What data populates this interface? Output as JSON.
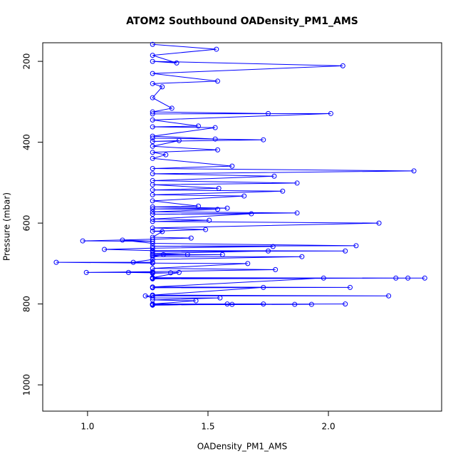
{
  "chart_data": {
    "type": "line",
    "title": "ATOM2 Southbound OADensity_PM1_AMS",
    "x_label": "OADensity_PM1_AMS",
    "y_label": "Pressure (mbar)",
    "color": "#0000ff",
    "xlim": [
      0.814,
      2.47
    ],
    "ylim": [
      1065,
      154
    ],
    "xticks": [
      {
        "value": 1,
        "label": "1.0"
      },
      1.5,
      {
        "value": 2,
        "label": "2.0"
      }
    ],
    "yticks": [
      200,
      400,
      600,
      800,
      1000
    ],
    "x": [
      1.27,
      1.535,
      1.27,
      1.37,
      1.27,
      2.06,
      1.27,
      1.54,
      1.27,
      1.31,
      1.27,
      1.35,
      1.27,
      1.75,
      1.27,
      2.01,
      1.27,
      1.46,
      1.27,
      1.53,
      1.27,
      1.53,
      1.27,
      1.73,
      1.27,
      1.38,
      1.27,
      1.54,
      1.27,
      1.325,
      1.27,
      1.6,
      1.27,
      2.355,
      1.27,
      1.775,
      1.27,
      1.87,
      1.27,
      1.545,
      1.27,
      1.81,
      1.27,
      1.65,
      1.27,
      1.46,
      1.27,
      1.58,
      1.27,
      1.54,
      1.27,
      1.87,
      1.27,
      1.68,
      1.27,
      1.505,
      1.27,
      2.21,
      1.27,
      1.49,
      1.27,
      1.31,
      1.27,
      1.43,
      1.27,
      0.98,
      1.27,
      1.145,
      1.27,
      2.115,
      1.27,
      1.77,
      1.27,
      1.07,
      1.27,
      2.07,
      1.27,
      1.75,
      1.27,
      1.415,
      1.27,
      1.56,
      1.27,
      1.315,
      1.27,
      1.89,
      1.27,
      1.19,
      1.27,
      0.87,
      1.27,
      1.665,
      1.27,
      1.78,
      1.27,
      0.995,
      1.27,
      1.17,
      1.27,
      1.345,
      1.27,
      1.38,
      1.27,
      2.33,
      1.27,
      2.4,
      1.27,
      2.28,
      1.27,
      1.98,
      1.27,
      2.09,
      1.27,
      1.73,
      1.27,
      2.25,
      1.27,
      1.24,
      1.27,
      1.55,
      1.27,
      1.45,
      1.27,
      1.73,
      1.27,
      2.07,
      1.27,
      1.93,
      1.27,
      1.86,
      1.27,
      1.6,
      1.27,
      1.58
    ],
    "values": [
      158,
      170,
      185,
      204,
      200,
      211,
      230,
      249,
      255,
      263,
      290,
      316,
      325,
      329,
      330,
      329,
      345,
      360,
      362,
      364,
      385,
      392,
      390,
      394,
      398,
      396,
      410,
      419,
      425,
      431,
      440,
      459,
      465,
      471,
      478,
      484,
      495,
      501,
      505,
      514,
      518,
      521,
      530,
      533,
      545,
      558,
      560,
      563,
      565,
      566,
      572,
      575,
      578,
      577,
      590,
      593,
      596,
      600,
      612,
      616,
      620,
      621,
      635,
      637,
      640,
      644,
      645,
      642,
      650,
      656,
      657,
      658,
      662,
      665,
      668,
      669,
      670,
      669,
      675,
      678,
      678,
      678,
      680,
      678,
      683,
      683,
      690,
      697,
      697,
      697,
      699,
      700,
      712,
      715,
      720,
      722,
      722,
      722,
      723,
      723,
      724,
      722,
      735,
      736,
      736,
      736,
      737,
      736,
      738,
      736,
      758,
      759,
      760,
      759,
      778,
      780,
      780,
      780,
      785,
      785,
      790,
      792,
      800,
      800,
      801,
      800,
      801,
      801,
      802,
      801,
      802,
      801,
      803,
      800
    ]
  }
}
